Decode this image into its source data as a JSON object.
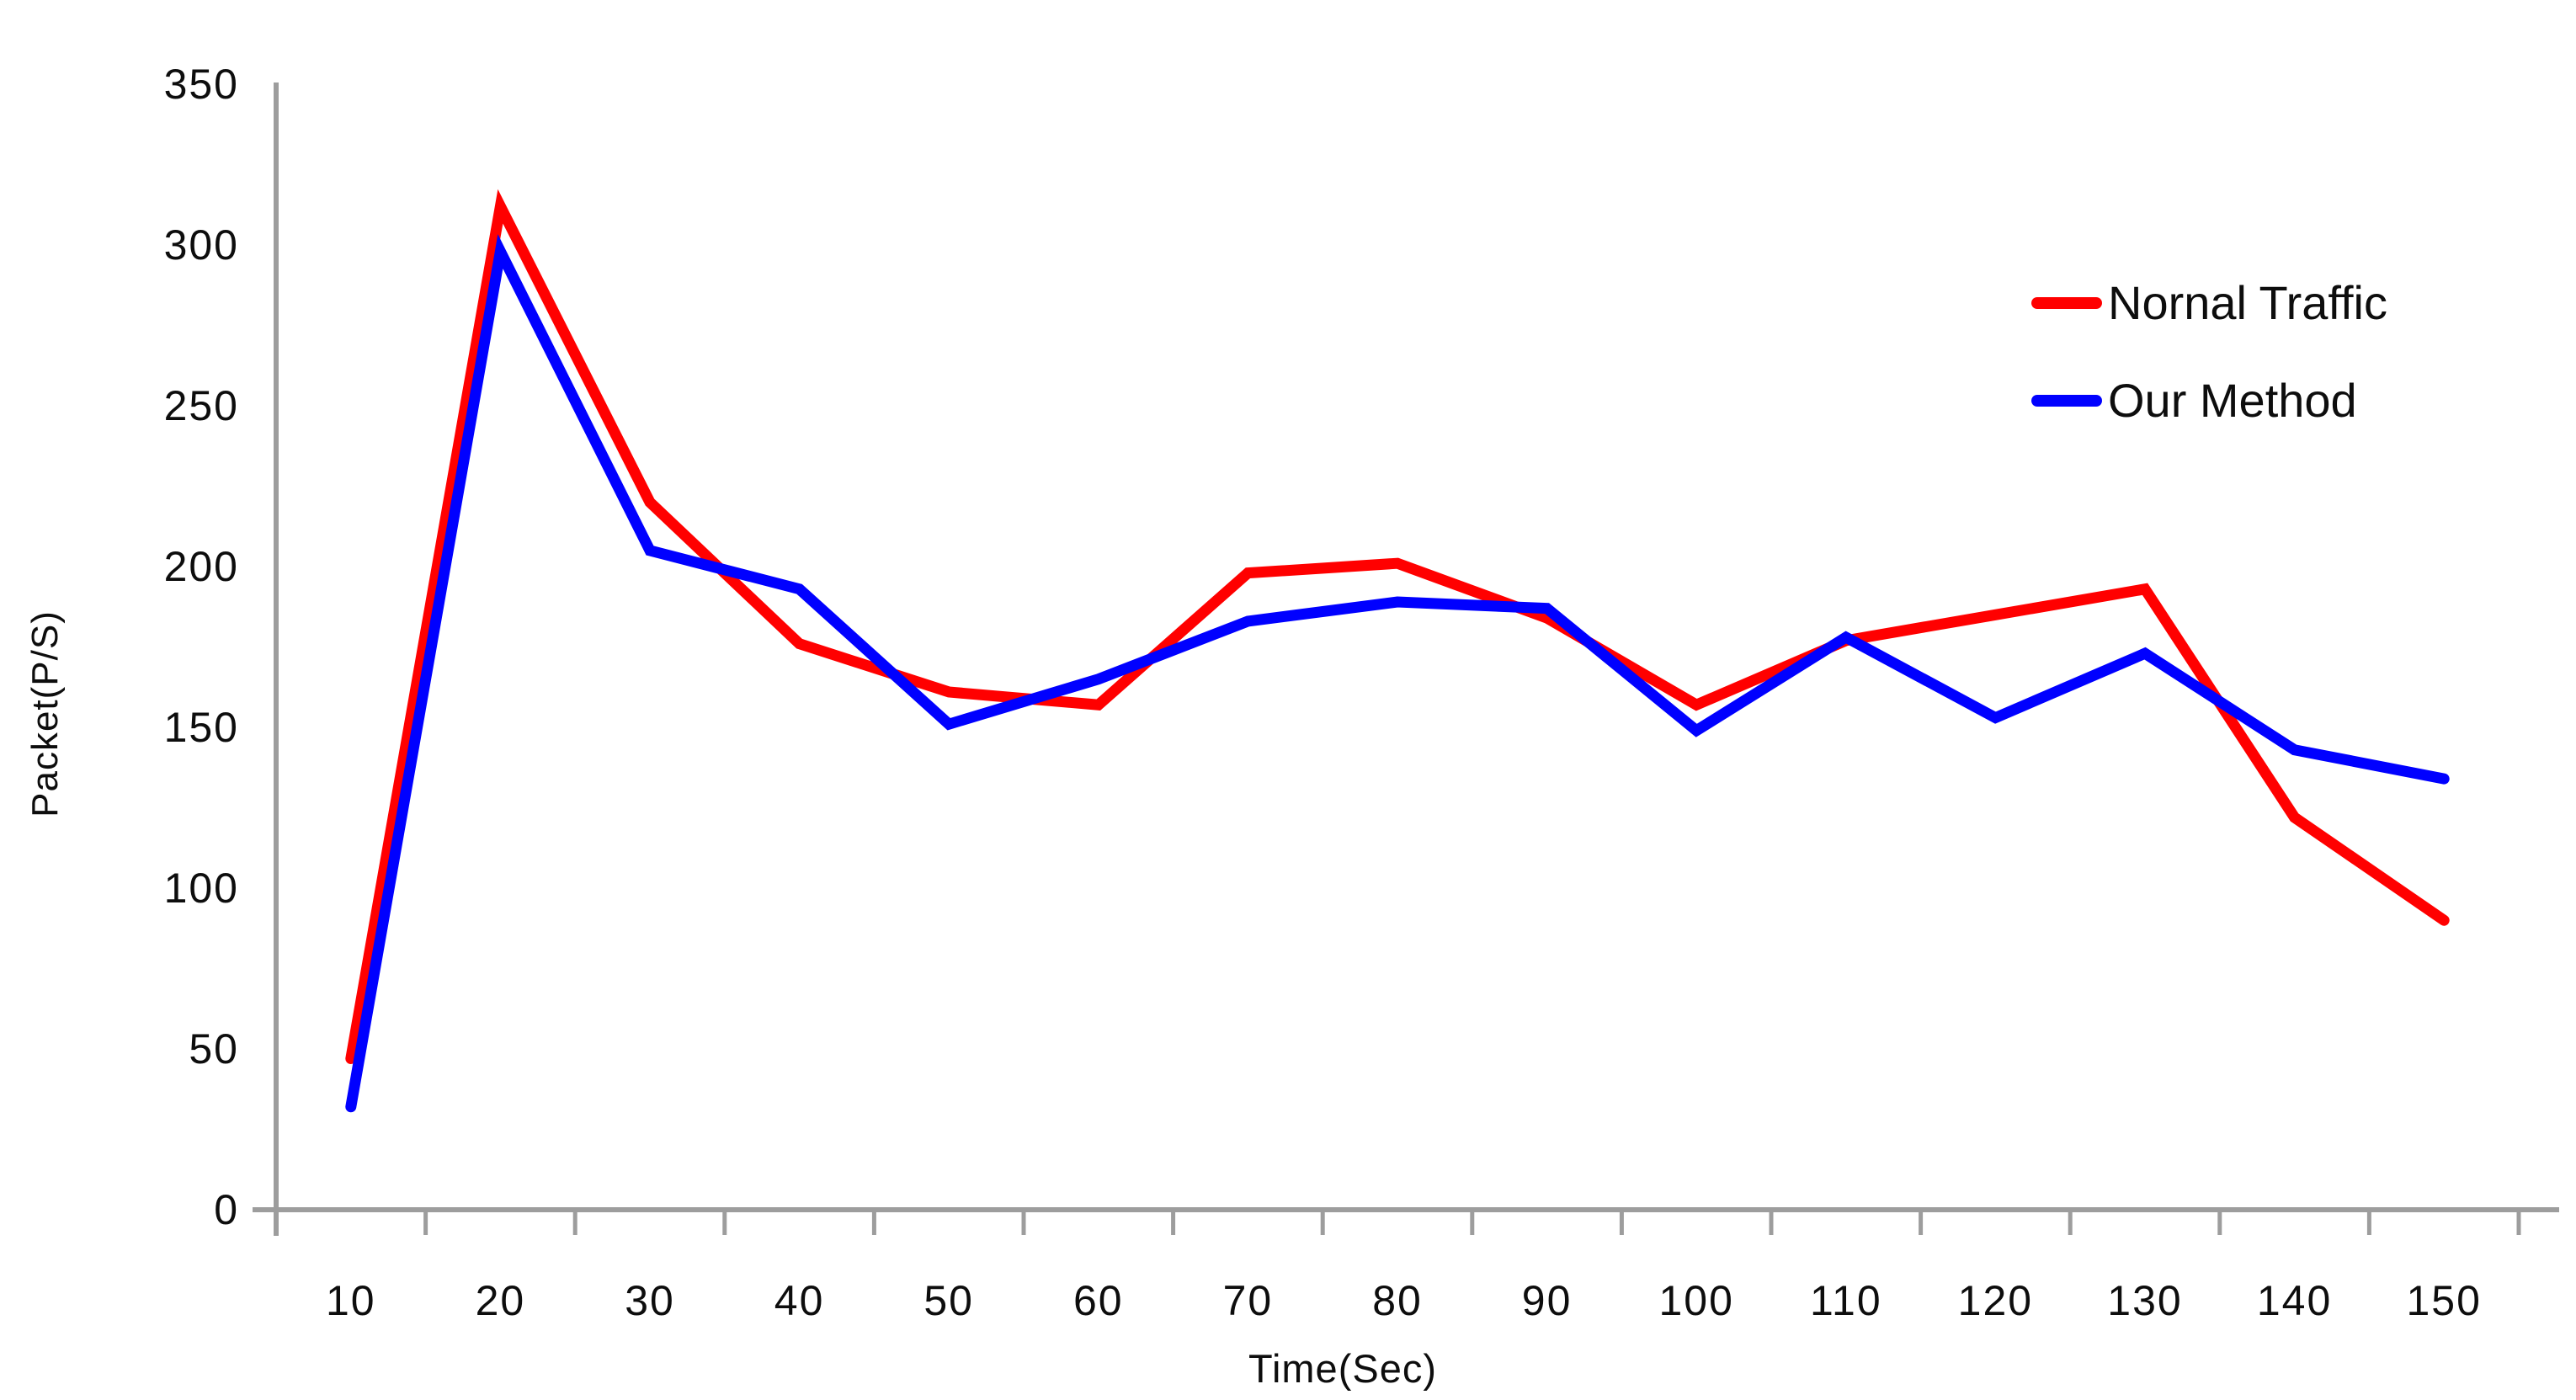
{
  "chart_data": {
    "type": "line",
    "title": "",
    "xlabel": "Time(Sec)",
    "ylabel": "Packet(P/S)",
    "x": [
      10,
      20,
      30,
      40,
      50,
      60,
      70,
      80,
      90,
      100,
      110,
      120,
      130,
      140,
      150
    ],
    "y_ticks": [
      0,
      50,
      100,
      150,
      200,
      250,
      300,
      350
    ],
    "ylim": [
      0,
      350
    ],
    "grid": false,
    "legend_position": "top-right",
    "series": [
      {
        "name": "Nornal Traffic",
        "color": "#ff0000",
        "values": [
          47,
          312,
          220,
          176,
          161,
          157,
          198,
          201,
          184,
          157,
          177,
          185,
          193,
          122,
          90
        ]
      },
      {
        "name": "Our Method",
        "color": "#0000ff",
        "values": [
          32,
          298,
          205,
          193,
          151,
          165,
          183,
          189,
          187,
          149,
          178,
          153,
          173,
          143,
          134
        ]
      }
    ],
    "axis_color": "#9d9d9d",
    "text_color": "#0d0d0d",
    "background": "#ffffff"
  }
}
